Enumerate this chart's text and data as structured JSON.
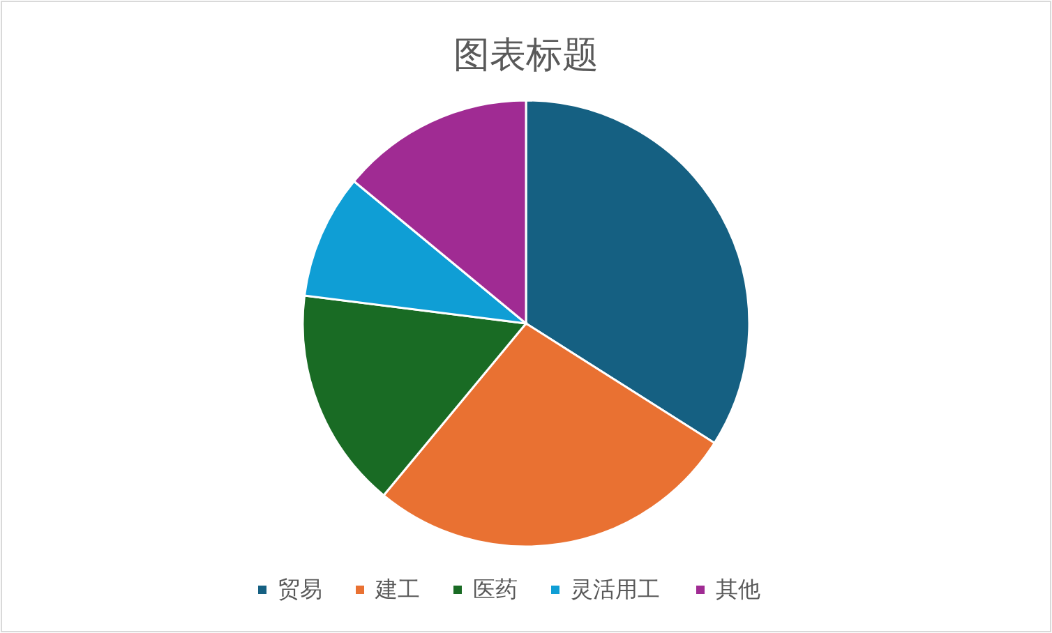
{
  "chart_data": {
    "type": "pie",
    "title": "图表标题",
    "categories": [
      "贸易",
      "建工",
      "医药",
      "灵活用工",
      "其他"
    ],
    "values": [
      34,
      27,
      16,
      9,
      14
    ],
    "colors": [
      "#156082",
      "#e97132",
      "#196b24",
      "#0f9ed5",
      "#a02b93"
    ],
    "legend": "bottom"
  }
}
